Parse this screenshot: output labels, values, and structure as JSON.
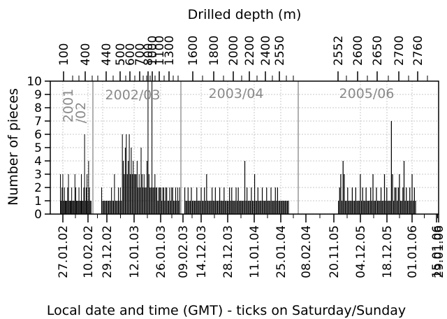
{
  "chart_data": {
    "type": "bar",
    "xlabel": "Local date and time (GMT) - ticks on Saturday/Sunday",
    "x2label": "Drilled depth (m)",
    "ylabel": "Number of pieces",
    "ylim": [
      0,
      10
    ],
    "yticks": [
      "0",
      "1",
      "2",
      "3",
      "4",
      "5",
      "6",
      "7",
      "8",
      "9",
      "10"
    ],
    "grid": true,
    "date_ticks": [
      "27.01.02",
      "10.02.02",
      "29.12.02",
      "12.01.03",
      "26.01.03",
      "09.02.03",
      "14.12.03",
      "28.12.03",
      "11.01.04",
      "25.01.04",
      "08.02.04",
      "20.11.05",
      "04.12.05",
      "18.12.05",
      "01.01.06",
      "15.01.06",
      "29.01.06"
    ],
    "depth_ticks": [
      "100",
      "400",
      "440",
      "500",
      "600",
      "700",
      "800",
      "1000",
      "1100",
      "1300",
      "1600",
      "1800",
      "2000",
      "2200",
      "2400",
      "2550",
      "2552",
      "2600",
      "2650",
      "2700",
      "2760"
    ],
    "seasons": [
      {
        "label": "2001/02",
        "separator_at": "2001/02 | 2002/03"
      },
      {
        "label": "2002/03"
      },
      {
        "label": "2003/04"
      },
      {
        "label": "2005/06"
      }
    ],
    "series": [
      {
        "season": "2001/02",
        "values": [
          3,
          1,
          2,
          3,
          1,
          2,
          1,
          1,
          1,
          2,
          3,
          1,
          1,
          1,
          2,
          1,
          1,
          1,
          3,
          2,
          1,
          1,
          1,
          2,
          1,
          1,
          3,
          1,
          1,
          2,
          6,
          1,
          2,
          3,
          1,
          4,
          2,
          1,
          1
        ]
      },
      {
        "season": "2002/03",
        "values": [
          2,
          1,
          1,
          1,
          1,
          1,
          1,
          1,
          1,
          1,
          2,
          1,
          1,
          3,
          1,
          1,
          1,
          2,
          1,
          2,
          1,
          6,
          4,
          3,
          5,
          6,
          3,
          4,
          6,
          3,
          5,
          3,
          4,
          3,
          3,
          3,
          4,
          2,
          3,
          2,
          5,
          3,
          2,
          3,
          2,
          2,
          4,
          10,
          3,
          2,
          2,
          10,
          2,
          2,
          3,
          2,
          2,
          1,
          2,
          2,
          2,
          1,
          2,
          2,
          1,
          2,
          2,
          1,
          1,
          2,
          1,
          2,
          2,
          1,
          1,
          2,
          1,
          2,
          1,
          2
        ]
      },
      {
        "season": "2003/04",
        "values": [
          2,
          1,
          1,
          2,
          1,
          1,
          2,
          1,
          1,
          1,
          1,
          2,
          1,
          1,
          1,
          2,
          1,
          1,
          2,
          1,
          3,
          1,
          1,
          1,
          1,
          2,
          1,
          1,
          2,
          1,
          1,
          1,
          2,
          1,
          1,
          1,
          2,
          1,
          1,
          1,
          1,
          2,
          1,
          2,
          1,
          1,
          1,
          2,
          1,
          2,
          1,
          1,
          1,
          1,
          1,
          4,
          1,
          2,
          1,
          1,
          1,
          2,
          1,
          1,
          3,
          1,
          1,
          2,
          1,
          1,
          1,
          2,
          1,
          1,
          1,
          2,
          1,
          1,
          1,
          2,
          1,
          1,
          1,
          2,
          1,
          2,
          1,
          1,
          1,
          1,
          1,
          1,
          1,
          1,
          1,
          1
        ]
      },
      {
        "season": "2005/06",
        "values": [
          1,
          2,
          3,
          1,
          4,
          3,
          1,
          1,
          2,
          1,
          1,
          1,
          2,
          1,
          1,
          2,
          1,
          1,
          1,
          3,
          1,
          2,
          1,
          1,
          2,
          1,
          1,
          1,
          2,
          1,
          3,
          1,
          1,
          2,
          1,
          1,
          1,
          2,
          1,
          1,
          3,
          1,
          2,
          1,
          1,
          1,
          7,
          3,
          1,
          2,
          2,
          1,
          2,
          3,
          1,
          1,
          2,
          4,
          1,
          2,
          1,
          1,
          2,
          1,
          3,
          1,
          2,
          1
        ]
      }
    ]
  }
}
